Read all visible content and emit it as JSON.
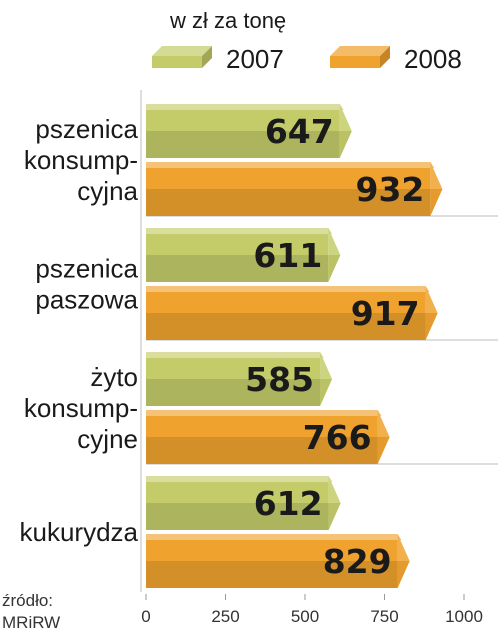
{
  "chart_data": {
    "type": "bar",
    "orientation": "horizontal",
    "unit_label": "w zł za tonę",
    "categories": [
      [
        "pszenica",
        "konsump-",
        "cyjna"
      ],
      [
        "pszenica",
        "paszowa"
      ],
      [
        "żyto",
        "konsump-",
        "cyjne"
      ],
      [
        "kukurydza"
      ]
    ],
    "series": [
      {
        "name": "2007",
        "values": [
          647,
          611,
          585,
          612
        ],
        "color": "#c4cc6a"
      },
      {
        "name": "2008",
        "values": [
          932,
          917,
          766,
          829
        ],
        "color": "#f0a22e"
      }
    ],
    "xlim": [
      0,
      1000
    ],
    "xticks": [
      0,
      250,
      500,
      750,
      1000
    ],
    "legend_position": "top",
    "grid": false,
    "source": [
      "źródło:",
      "MRiRW"
    ]
  }
}
